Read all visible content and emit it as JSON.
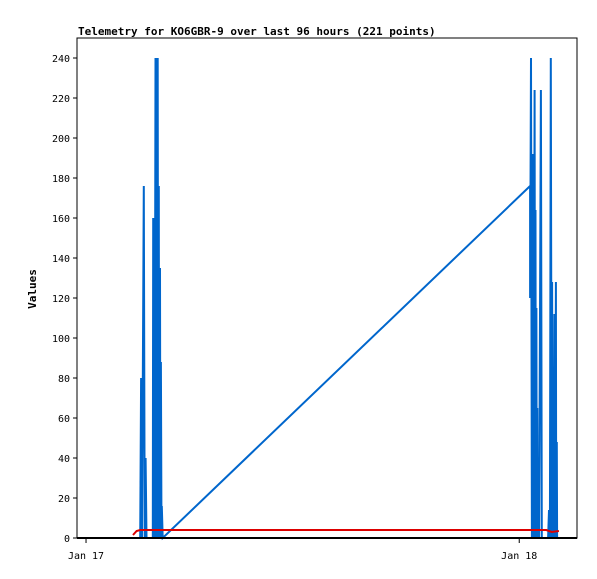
{
  "chart_data": {
    "type": "line",
    "title": "Telemetry for KO6GBR-9 over last 96 hours (221 points)",
    "xlabel": "",
    "ylabel": "Values",
    "ylim": [
      0,
      250
    ],
    "yticks": [
      0,
      20,
      40,
      60,
      80,
      100,
      120,
      140,
      160,
      180,
      200,
      220,
      240
    ],
    "xticks": [
      "Jan 17",
      "Jan 18"
    ],
    "x_unit": "hours since Jan 17 00:00",
    "xlim": [
      -0.5,
      27.2
    ],
    "grid": false,
    "legend": "none",
    "series": [
      {
        "color": "#0066cc",
        "points": [
          [
            3.0,
            0
          ],
          [
            3.05,
            80
          ],
          [
            3.1,
            0
          ],
          [
            3.2,
            176
          ],
          [
            3.25,
            0
          ],
          [
            3.3,
            40
          ],
          [
            3.35,
            0
          ],
          [
            3.7,
            0
          ],
          [
            3.72,
            160
          ],
          [
            3.75,
            0
          ],
          [
            3.78,
            120
          ],
          [
            3.8,
            0
          ],
          [
            3.85,
            240
          ],
          [
            3.9,
            0
          ],
          [
            3.92,
            240
          ],
          [
            3.95,
            191
          ],
          [
            3.97,
            240
          ],
          [
            4.0,
            0
          ],
          [
            4.03,
            176
          ],
          [
            4.05,
            0
          ],
          [
            4.1,
            135
          ],
          [
            4.12,
            0
          ],
          [
            4.15,
            88
          ],
          [
            4.18,
            0
          ],
          [
            4.2,
            16
          ],
          [
            4.25,
            0
          ],
          [
            24.6,
            176
          ],
          [
            24.6,
            120
          ],
          [
            24.65,
            240
          ],
          [
            24.7,
            0
          ],
          [
            24.72,
            192
          ],
          [
            24.75,
            0
          ],
          [
            24.78,
            192
          ],
          [
            24.8,
            0
          ],
          [
            24.85,
            224
          ],
          [
            24.88,
            0
          ],
          [
            24.9,
            164
          ],
          [
            24.92,
            0
          ],
          [
            24.95,
            115
          ],
          [
            24.97,
            0
          ],
          [
            25.0,
            65
          ],
          [
            25.02,
            0
          ],
          [
            25.05,
            38
          ],
          [
            25.1,
            0
          ],
          [
            25.2,
            224
          ],
          [
            25.25,
            0
          ],
          [
            25.6,
            0
          ],
          [
            25.65,
            14
          ],
          [
            25.7,
            0
          ],
          [
            25.75,
            240
          ],
          [
            25.8,
            0
          ],
          [
            25.82,
            128
          ],
          [
            25.85,
            0
          ],
          [
            25.9,
            64
          ],
          [
            25.92,
            0
          ],
          [
            25.95,
            112
          ],
          [
            25.97,
            40
          ],
          [
            26.0,
            0
          ],
          [
            26.03,
            128
          ],
          [
            26.05,
            0
          ],
          [
            26.08,
            48
          ],
          [
            26.1,
            0
          ]
        ]
      },
      {
        "color": "#dd0000",
        "points": [
          [
            2.6,
            1.5
          ],
          [
            2.8,
            3.5
          ],
          [
            3.0,
            4
          ],
          [
            10,
            4
          ],
          [
            20,
            4
          ],
          [
            25.2,
            4
          ],
          [
            25.5,
            4
          ],
          [
            25.8,
            3
          ],
          [
            26.2,
            3.5
          ]
        ]
      }
    ]
  }
}
